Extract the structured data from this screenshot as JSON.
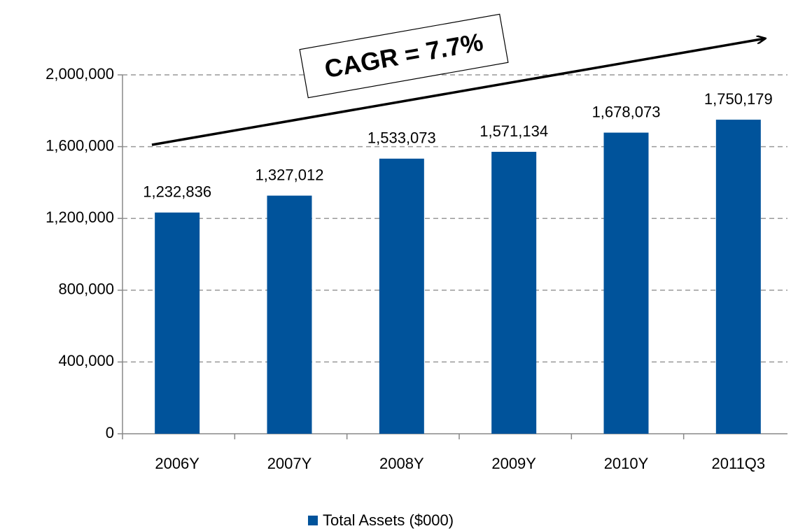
{
  "chart_data": {
    "type": "bar",
    "annotation": "CAGR = 7.7%",
    "categories": [
      "2006Y",
      "2007Y",
      "2008Y",
      "2009Y",
      "2010Y",
      "2011Q3"
    ],
    "series": [
      {
        "name": "Total Assets ($000)",
        "color": "#00539b",
        "values": [
          1232836,
          1327012,
          1533073,
          1571134,
          1678073,
          1750179
        ],
        "value_labels": [
          "1,232,836",
          "1,327,012",
          "1,533,073",
          "1,571,134",
          "1,678,073",
          "1,750,179"
        ]
      }
    ],
    "ylim": [
      0,
      2000000
    ],
    "yticks": [
      0,
      {
        "value": 400000,
        "label": "400,000"
      },
      {
        "value": 800000,
        "label": "800,000"
      },
      {
        "value": 1200000,
        "label": "1,200,000"
      },
      {
        "value": 1600000,
        "label": "1,600,000"
      },
      {
        "value": 2000000,
        "label": "2,000,000"
      }
    ],
    "grid": true
  }
}
